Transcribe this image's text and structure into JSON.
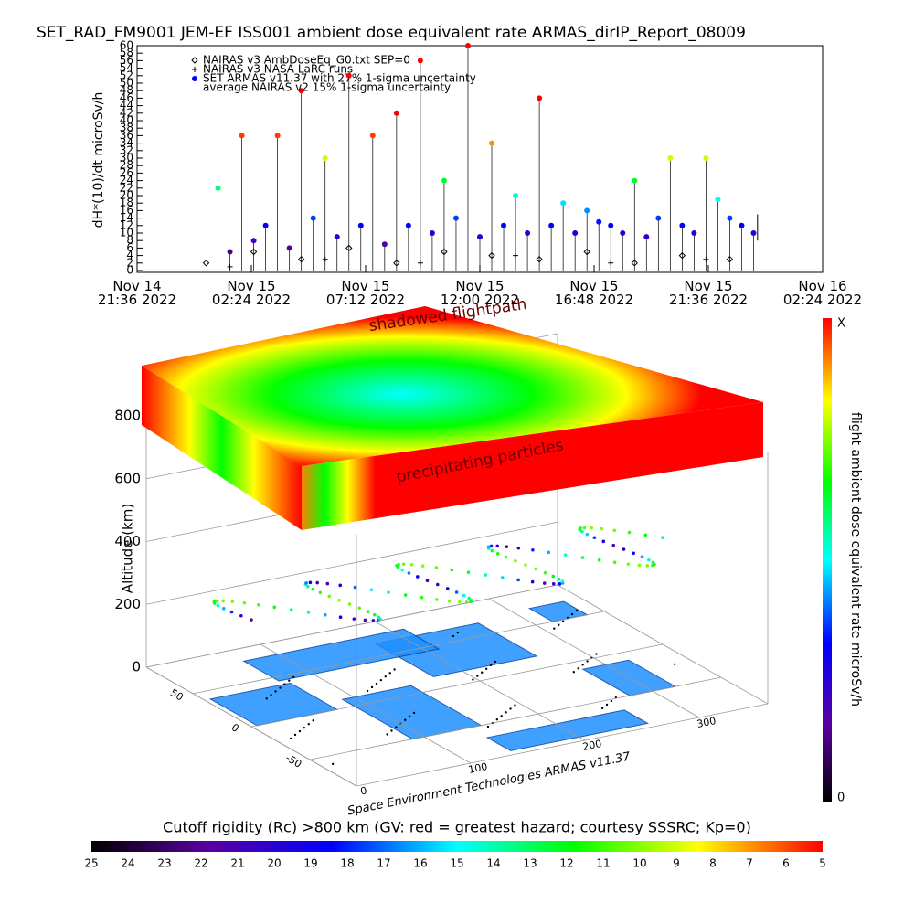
{
  "chart_data": [
    {
      "type": "scatter",
      "title": "SET_RAD_FM9001  JEM-EF ISS001 ambient dose equivalent rate ARMAS_dirIP_Report_08009",
      "ylabel": "dH*(10)/dt microSv/h",
      "xlim": [
        "2022-11-14T21:36",
        "2022-11-16T02:24"
      ],
      "xticks": [
        {
          "value": "2022-11-14T21:36",
          "label": "Nov 14\n21:36 2022"
        },
        {
          "value": "2022-11-15T02:24",
          "label": "Nov 15\n02:24 2022"
        },
        {
          "value": "2022-11-15T07:12",
          "label": "Nov 15\n07:12 2022"
        },
        {
          "value": "2022-11-15T12:00",
          "label": "Nov 15\n12:00 2022"
        },
        {
          "value": "2022-11-15T16:48",
          "label": "Nov 15\n16:48 2022"
        },
        {
          "value": "2022-11-15T21:36",
          "label": "Nov 15\n21:36 2022"
        },
        {
          "value": "2022-11-16T02:24",
          "label": "Nov 16\n02:24 2022"
        }
      ],
      "ylim": [
        0,
        60
      ],
      "yticks": [
        0,
        2,
        4,
        6,
        8,
        10,
        12,
        14,
        16,
        18,
        20,
        22,
        24,
        26,
        28,
        30,
        32,
        34,
        36,
        38,
        40,
        42,
        44,
        46,
        48,
        50,
        52,
        54,
        56,
        58,
        60
      ],
      "series": [
        {
          "name": "NAIRAS v3 AmbDoseEq_G0.txt SEP=0",
          "marker": "diamond",
          "color": "#000000",
          "x": [
            "2022-11-15T00:30",
            "2022-11-15T02:30",
            "2022-11-15T04:30",
            "2022-11-15T06:30",
            "2022-11-15T08:30",
            "2022-11-15T10:30",
            "2022-11-15T12:30",
            "2022-11-15T14:30",
            "2022-11-15T16:30",
            "2022-11-15T18:30",
            "2022-11-15T20:30",
            "2022-11-15T22:30"
          ],
          "values": [
            2,
            5,
            3,
            6,
            2,
            5,
            4,
            3,
            5,
            2,
            4,
            3
          ]
        },
        {
          "name": "NAIRAS v3 NASA LaRC runs",
          "marker": "plus",
          "color": "#000000",
          "x": [
            "2022-11-15T01:30",
            "2022-11-15T05:30",
            "2022-11-15T09:30",
            "2022-11-15T13:30",
            "2022-11-15T17:30",
            "2022-11-15T21:30"
          ],
          "values": [
            1,
            3,
            2,
            4,
            2,
            3
          ]
        },
        {
          "name": "SET ARMAS v11.37 with 27% 1-sigma uncertainty",
          "marker": "dot",
          "color": "#0000ff",
          "x": [
            "2022-11-15T01:00",
            "2022-11-15T01:30",
            "2022-11-15T02:00",
            "2022-11-15T02:30",
            "2022-11-15T03:00",
            "2022-11-15T03:30",
            "2022-11-15T04:00",
            "2022-11-15T04:30",
            "2022-11-15T05:00",
            "2022-11-15T05:30",
            "2022-11-15T06:00",
            "2022-11-15T06:30",
            "2022-11-15T07:00",
            "2022-11-15T07:30",
            "2022-11-15T08:00",
            "2022-11-15T08:30",
            "2022-11-15T09:00",
            "2022-11-15T09:30",
            "2022-11-15T10:00",
            "2022-11-15T10:30",
            "2022-11-15T11:00",
            "2022-11-15T11:30",
            "2022-11-15T12:00",
            "2022-11-15T12:30",
            "2022-11-15T13:00",
            "2022-11-15T13:30",
            "2022-11-15T14:00",
            "2022-11-15T14:30",
            "2022-11-15T15:00",
            "2022-11-15T15:30",
            "2022-11-15T16:00",
            "2022-11-15T16:30",
            "2022-11-15T17:00",
            "2022-11-15T17:30",
            "2022-11-15T18:00",
            "2022-11-15T18:30",
            "2022-11-15T19:00",
            "2022-11-15T19:30",
            "2022-11-15T20:00",
            "2022-11-15T20:30",
            "2022-11-15T21:00",
            "2022-11-15T21:30",
            "2022-11-15T22:00",
            "2022-11-15T22:30",
            "2022-11-15T23:00",
            "2022-11-15T23:30"
          ],
          "values": [
            22,
            5,
            36,
            8,
            12,
            36,
            6,
            48,
            14,
            30,
            9,
            52,
            12,
            36,
            7,
            42,
            12,
            56,
            10,
            24,
            14,
            60,
            9,
            34,
            12,
            20,
            10,
            46,
            12,
            18,
            10,
            16,
            13,
            12,
            10,
            24,
            9,
            14,
            30,
            12,
            10,
            30,
            19,
            14,
            12,
            10
          ]
        },
        {
          "name": "average NAIRAS v2 15% 1-sigma uncertainty",
          "marker": "line",
          "color": "#000000",
          "x": [
            "2022-11-15T23:40",
            "2022-11-15T23:40"
          ],
          "values": [
            8,
            15
          ]
        }
      ]
    },
    {
      "type": "scatter3d",
      "annotations": [
        "shadowed flightpath",
        "precipitating particles"
      ],
      "zlabel": "Altitude (km)",
      "zlim": [
        0,
        800
      ],
      "zticks": [
        0,
        200,
        400,
        600,
        800
      ],
      "xlim": [
        0,
        360
      ],
      "xticks": [
        0,
        100,
        200,
        300
      ],
      "ylim": [
        -90,
        90
      ],
      "yticks": [
        -50,
        0,
        50
      ],
      "credit": "Space Environment Technologies ARMAS v11.37"
    },
    {
      "type": "colorbar",
      "label": "flight ambient dose equivalent rate microSv/h",
      "labels": [
        "X",
        "0"
      ]
    },
    {
      "type": "colorbar",
      "title": "Cutoff rigidity (Rc) >800 km (GV: red = greatest hazard; courtesy SSSRC; Kp=0)",
      "ticks": [
        25,
        24,
        23,
        22,
        21,
        20,
        19,
        18,
        17,
        16,
        15,
        14,
        13,
        12,
        11,
        10,
        9,
        8,
        7,
        6,
        5
      ]
    }
  ]
}
